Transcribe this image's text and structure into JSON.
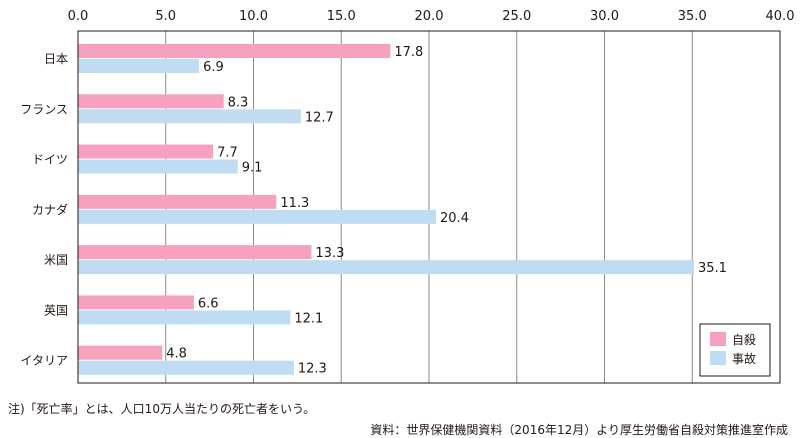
{
  "chart_data": {
    "type": "bar",
    "orientation": "horizontal",
    "categories": [
      "日本",
      "フランス",
      "ドイツ",
      "カナダ",
      "米国",
      "英国",
      "イタリア"
    ],
    "series": [
      {
        "name": "自殺",
        "values": [
          17.8,
          8.3,
          7.7,
          11.3,
          13.3,
          6.6,
          4.8
        ],
        "color": "#f7a1c1"
      },
      {
        "name": "事故",
        "values": [
          6.9,
          12.7,
          9.1,
          20.4,
          35.1,
          12.1,
          12.3
        ],
        "color": "#bfdcf2"
      }
    ],
    "xlim": [
      0,
      40
    ],
    "xticks": [
      "0.0",
      "5.0",
      "10.0",
      "15.0",
      "20.0",
      "25.0",
      "30.0",
      "35.0",
      "40.0"
    ],
    "axis_position": "top",
    "grid": "vertical",
    "legend_position": "bottom-right",
    "title": "",
    "xlabel": "",
    "ylabel": ""
  },
  "notes": {
    "footnote": "注)「死亡率」とは、人口10万人当たりの死亡者をいう。",
    "source": "資料：世界保健機関資料（2016年12月）より厚生労働省自殺対策推進室作成"
  },
  "colors": {
    "grid": "#8c8c8c",
    "frame": "#231815",
    "text": "#231815"
  }
}
